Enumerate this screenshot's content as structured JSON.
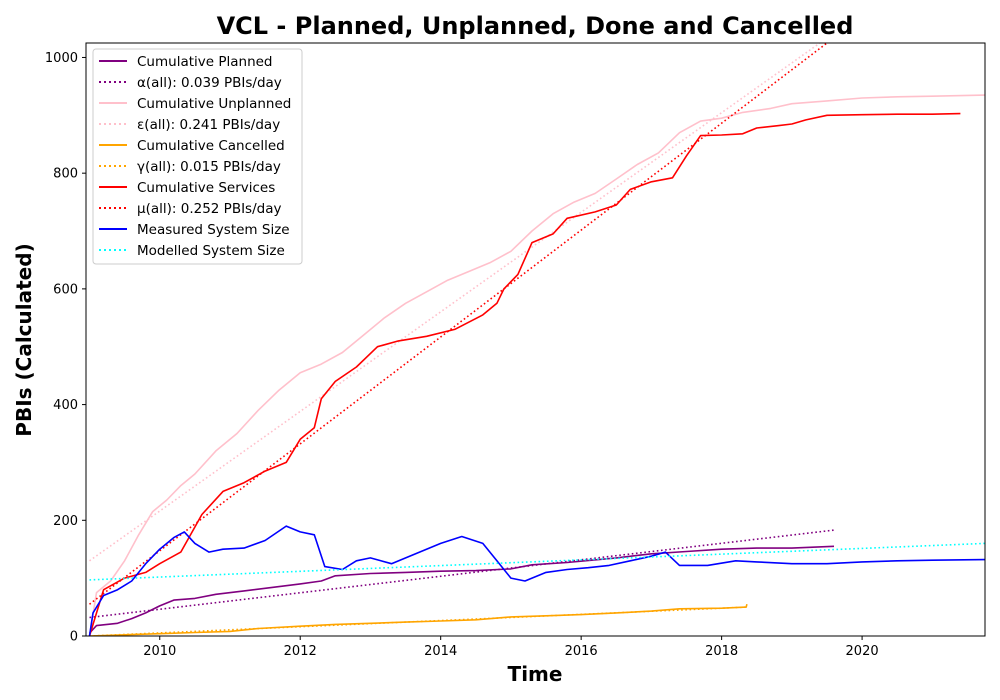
{
  "chart_data": {
    "type": "line",
    "title": "VCL - Planned, Unplanned, Done  and Cancelled",
    "xlabel": "Time",
    "ylabel": "PBIs (Calculated)",
    "xlim": [
      2008.95,
      2021.75
    ],
    "ylim": [
      0,
      1025
    ],
    "xticks": [
      2010,
      2012,
      2014,
      2016,
      2018,
      2020
    ],
    "yticks": [
      0,
      200,
      400,
      600,
      800,
      1000
    ],
    "grid": false,
    "legend_position": "top-left",
    "series": [
      {
        "name": "Cumulative Planned",
        "color": "#800080",
        "style": "solid",
        "points": [
          [
            2009.0,
            5
          ],
          [
            2009.1,
            18
          ],
          [
            2009.4,
            22
          ],
          [
            2009.6,
            30
          ],
          [
            2009.8,
            40
          ],
          [
            2010.0,
            52
          ],
          [
            2010.2,
            62
          ],
          [
            2010.5,
            65
          ],
          [
            2010.8,
            72
          ],
          [
            2011.2,
            78
          ],
          [
            2011.6,
            84
          ],
          [
            2012.0,
            90
          ],
          [
            2012.3,
            95
          ],
          [
            2012.5,
            104
          ],
          [
            2013.0,
            108
          ],
          [
            2013.5,
            110
          ],
          [
            2014.0,
            112
          ],
          [
            2014.5,
            113
          ],
          [
            2015.0,
            116
          ],
          [
            2015.3,
            123
          ],
          [
            2015.8,
            127
          ],
          [
            2016.5,
            135
          ],
          [
            2017.0,
            142
          ],
          [
            2017.5,
            146
          ],
          [
            2018.0,
            150
          ],
          [
            2018.5,
            152
          ],
          [
            2019.0,
            152
          ],
          [
            2019.6,
            155
          ]
        ]
      },
      {
        "name": "α(all): 0.039 PBIs/day",
        "color": "#800080",
        "style": "dotted",
        "points": [
          [
            2009.0,
            32
          ],
          [
            2019.6,
            183
          ]
        ]
      },
      {
        "name": "Cumulative Unplanned",
        "color": "#ffc0cb",
        "style": "solid",
        "points": [
          [
            2009.0,
            0
          ],
          [
            2009.1,
            75
          ],
          [
            2009.3,
            95
          ],
          [
            2009.5,
            130
          ],
          [
            2009.7,
            175
          ],
          [
            2009.9,
            215
          ],
          [
            2010.1,
            235
          ],
          [
            2010.3,
            260
          ],
          [
            2010.5,
            280
          ],
          [
            2010.8,
            320
          ],
          [
            2011.1,
            350
          ],
          [
            2011.4,
            390
          ],
          [
            2011.7,
            425
          ],
          [
            2012.0,
            455
          ],
          [
            2012.3,
            470
          ],
          [
            2012.6,
            490
          ],
          [
            2012.9,
            520
          ],
          [
            2013.2,
            550
          ],
          [
            2013.5,
            575
          ],
          [
            2013.8,
            595
          ],
          [
            2014.1,
            615
          ],
          [
            2014.4,
            630
          ],
          [
            2014.7,
            645
          ],
          [
            2015.0,
            665
          ],
          [
            2015.3,
            700
          ],
          [
            2015.6,
            730
          ],
          [
            2015.9,
            750
          ],
          [
            2016.2,
            765
          ],
          [
            2016.5,
            790
          ],
          [
            2016.8,
            815
          ],
          [
            2017.1,
            835
          ],
          [
            2017.4,
            870
          ],
          [
            2017.7,
            890
          ],
          [
            2018.0,
            895
          ],
          [
            2018.3,
            905
          ],
          [
            2018.7,
            912
          ],
          [
            2019.0,
            920
          ],
          [
            2019.5,
            925
          ],
          [
            2020.0,
            930
          ],
          [
            2020.5,
            932
          ],
          [
            2021.0,
            933
          ],
          [
            2021.75,
            935
          ]
        ]
      },
      {
        "name": "ε(all): 0.241 PBIs/day",
        "color": "#ffc0cb",
        "style": "dotted",
        "points": [
          [
            2009.0,
            130
          ],
          [
            2019.4,
            1025
          ]
        ]
      },
      {
        "name": "Cumulative Cancelled",
        "color": "#ffa500",
        "style": "solid",
        "points": [
          [
            2009.0,
            0
          ],
          [
            2009.5,
            2
          ],
          [
            2010.0,
            4
          ],
          [
            2010.5,
            6
          ],
          [
            2011.0,
            8
          ],
          [
            2011.4,
            13
          ],
          [
            2012.0,
            17
          ],
          [
            2012.5,
            20
          ],
          [
            2013.0,
            22
          ],
          [
            2013.5,
            24
          ],
          [
            2014.0,
            26
          ],
          [
            2014.5,
            28
          ],
          [
            2015.0,
            33
          ],
          [
            2015.5,
            35
          ],
          [
            2016.0,
            37
          ],
          [
            2016.5,
            40
          ],
          [
            2017.0,
            43
          ],
          [
            2017.4,
            47
          ],
          [
            2018.0,
            48
          ],
          [
            2018.35,
            50
          ],
          [
            2018.36,
            55
          ]
        ]
      },
      {
        "name": "γ(all): 0.015 PBIs/day",
        "color": "#ffa500",
        "style": "dotted",
        "points": [
          [
            2009.0,
            0
          ],
          [
            2018.35,
            50
          ]
        ]
      },
      {
        "name": "Cumulative Services",
        "color": "#ff0000",
        "style": "solid",
        "points": [
          [
            2009.0,
            0
          ],
          [
            2009.2,
            80
          ],
          [
            2009.5,
            100
          ],
          [
            2009.8,
            110
          ],
          [
            2010.0,
            125
          ],
          [
            2010.3,
            145
          ],
          [
            2010.6,
            210
          ],
          [
            2010.9,
            250
          ],
          [
            2011.2,
            265
          ],
          [
            2011.5,
            285
          ],
          [
            2011.8,
            300
          ],
          [
            2012.0,
            340
          ],
          [
            2012.2,
            360
          ],
          [
            2012.3,
            410
          ],
          [
            2012.5,
            440
          ],
          [
            2012.8,
            465
          ],
          [
            2013.1,
            500
          ],
          [
            2013.4,
            510
          ],
          [
            2013.8,
            518
          ],
          [
            2014.2,
            530
          ],
          [
            2014.6,
            555
          ],
          [
            2014.8,
            575
          ],
          [
            2014.9,
            600
          ],
          [
            2015.1,
            625
          ],
          [
            2015.3,
            680
          ],
          [
            2015.6,
            695
          ],
          [
            2015.8,
            722
          ],
          [
            2016.2,
            733
          ],
          [
            2016.5,
            745
          ],
          [
            2016.7,
            772
          ],
          [
            2017.0,
            785
          ],
          [
            2017.3,
            792
          ],
          [
            2017.5,
            830
          ],
          [
            2017.7,
            865
          ],
          [
            2018.0,
            866
          ],
          [
            2018.3,
            868
          ],
          [
            2018.5,
            878
          ],
          [
            2018.8,
            882
          ],
          [
            2019.0,
            885
          ],
          [
            2019.2,
            892
          ],
          [
            2019.5,
            900
          ],
          [
            2020.0,
            901
          ],
          [
            2020.5,
            902
          ],
          [
            2021.0,
            902
          ],
          [
            2021.4,
            903
          ]
        ]
      },
      {
        "name": "μ(all): 0.252 PBIs/day",
        "color": "#ff0000",
        "style": "dotted",
        "points": [
          [
            2009.0,
            55
          ],
          [
            2019.5,
            1025
          ]
        ]
      },
      {
        "name": "Measured System Size",
        "color": "#0000ff",
        "style": "solid",
        "points": [
          [
            2009.0,
            0
          ],
          [
            2009.05,
            40
          ],
          [
            2009.2,
            70
          ],
          [
            2009.4,
            80
          ],
          [
            2009.6,
            95
          ],
          [
            2009.8,
            125
          ],
          [
            2010.0,
            150
          ],
          [
            2010.2,
            170
          ],
          [
            2010.35,
            180
          ],
          [
            2010.5,
            160
          ],
          [
            2010.7,
            145
          ],
          [
            2010.9,
            150
          ],
          [
            2011.2,
            152
          ],
          [
            2011.5,
            165
          ],
          [
            2011.8,
            190
          ],
          [
            2012.0,
            180
          ],
          [
            2012.2,
            175
          ],
          [
            2012.35,
            120
          ],
          [
            2012.6,
            115
          ],
          [
            2012.8,
            130
          ],
          [
            2013.0,
            135
          ],
          [
            2013.3,
            125
          ],
          [
            2013.6,
            140
          ],
          [
            2014.0,
            160
          ],
          [
            2014.3,
            172
          ],
          [
            2014.6,
            160
          ],
          [
            2014.8,
            130
          ],
          [
            2015.0,
            100
          ],
          [
            2015.2,
            95
          ],
          [
            2015.5,
            110
          ],
          [
            2015.8,
            115
          ],
          [
            2016.1,
            118
          ],
          [
            2016.4,
            122
          ],
          [
            2016.7,
            130
          ],
          [
            2017.0,
            138
          ],
          [
            2017.2,
            145
          ],
          [
            2017.4,
            122
          ],
          [
            2017.8,
            122
          ],
          [
            2018.2,
            130
          ],
          [
            2018.5,
            128
          ],
          [
            2019.0,
            125
          ],
          [
            2019.5,
            125
          ],
          [
            2020.0,
            128
          ],
          [
            2020.5,
            130
          ],
          [
            2021.0,
            131
          ],
          [
            2021.75,
            132
          ]
        ]
      },
      {
        "name": "Modelled System Size",
        "color": "#00ffff",
        "style": "dotted",
        "points": [
          [
            2009.0,
            97
          ],
          [
            2021.75,
            160
          ]
        ]
      }
    ]
  }
}
